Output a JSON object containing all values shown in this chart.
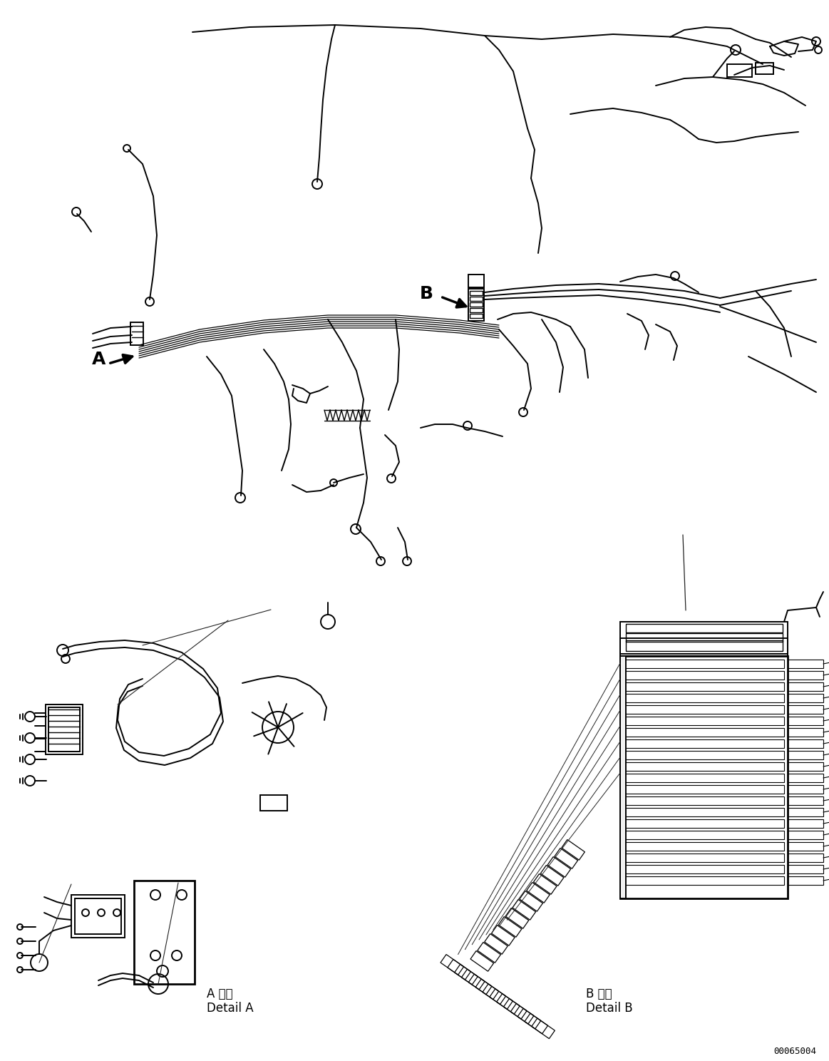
{
  "bg_color": "#ffffff",
  "line_color": "#000000",
  "fig_width": 11.63,
  "fig_height": 14.88,
  "dpi": 100,
  "label_A": "A",
  "label_B": "B",
  "detail_A_kanji": "A 詳細",
  "detail_A_roman": "Detail A",
  "detail_B_kanji": "B 詳細",
  "detail_B_roman": "Detail B",
  "part_number": "00065004"
}
